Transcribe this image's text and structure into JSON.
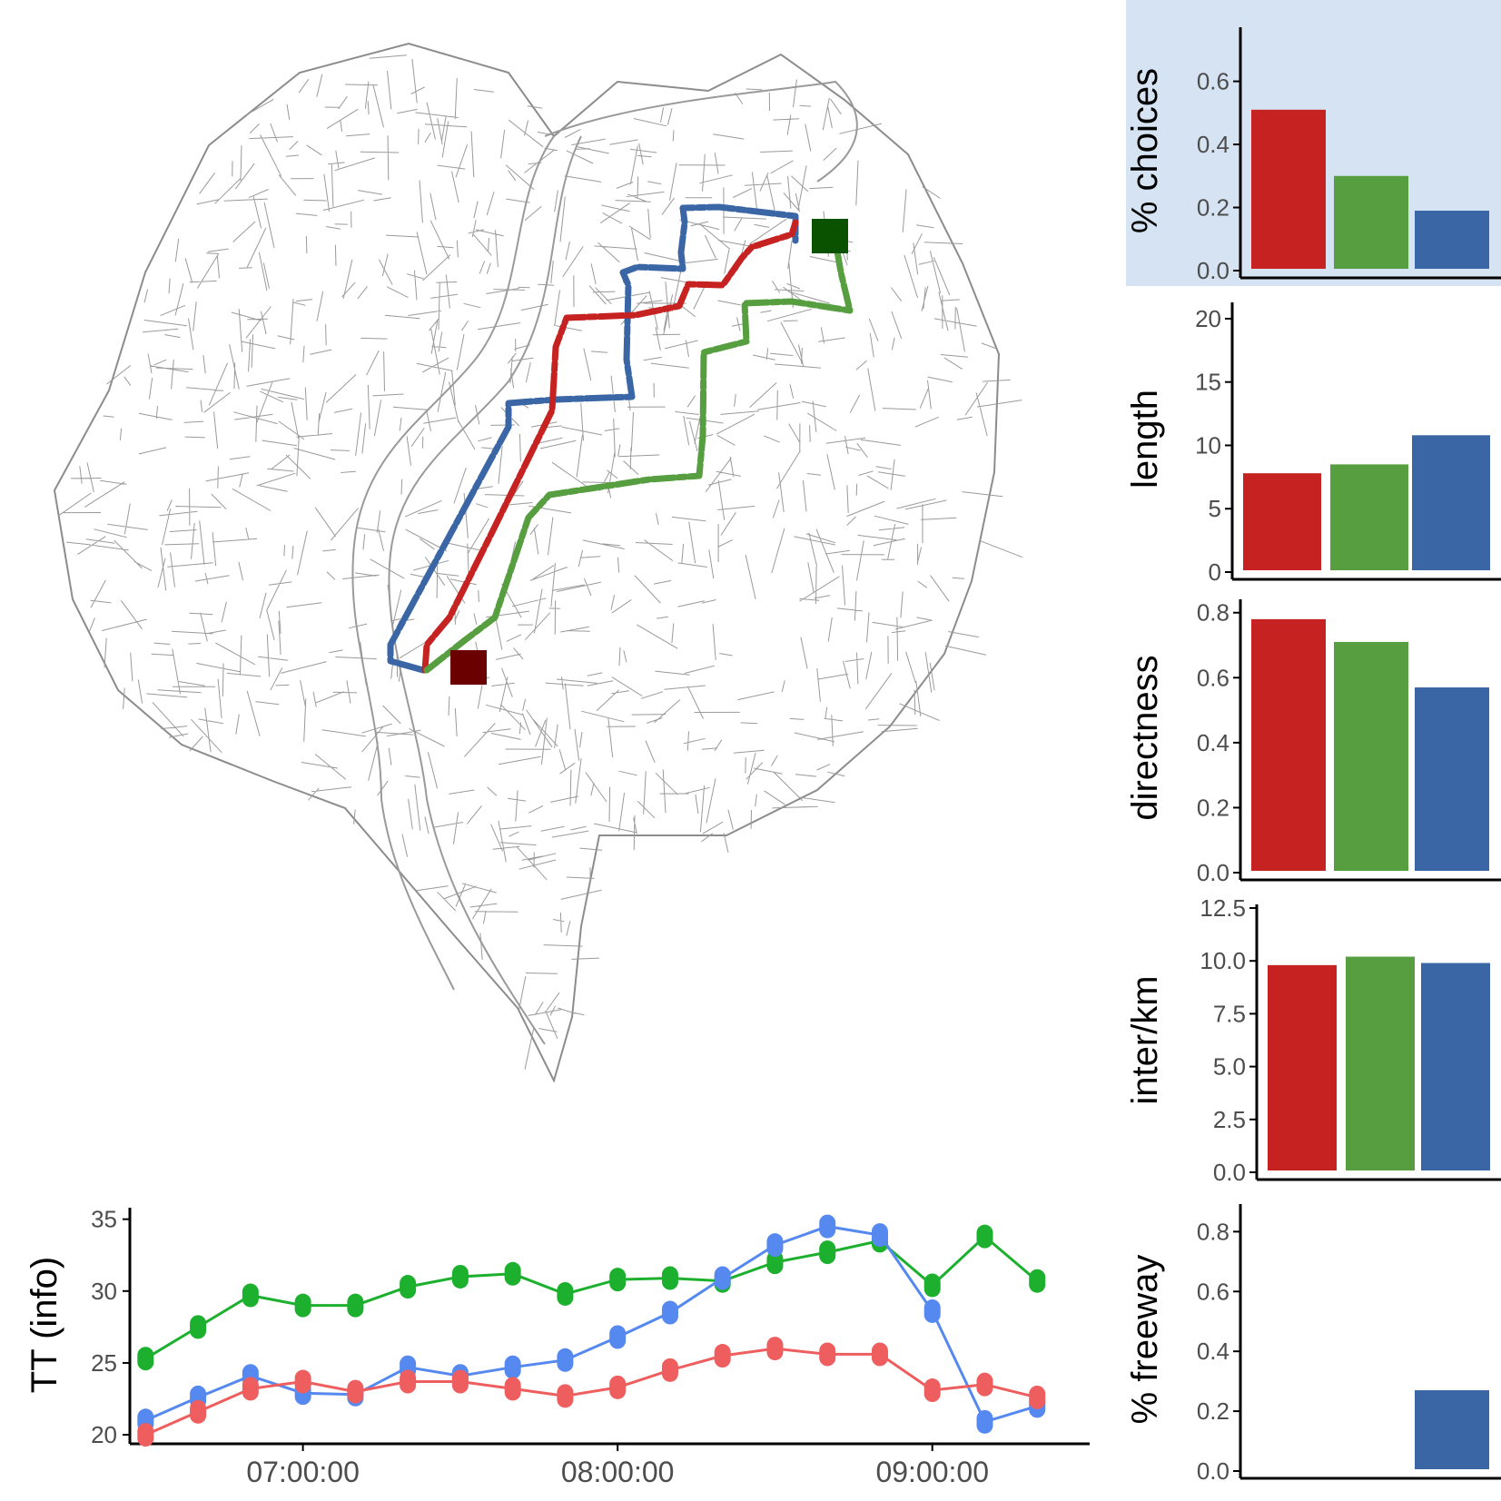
{
  "colors": {
    "red": "#C62222",
    "green": "#569E3F",
    "blue": "#3A66A5",
    "tt_red": "#EE5E5E",
    "tt_green": "#1CB02E",
    "tt_blue": "#5589F0",
    "highlight_panel": "#D6E3F2",
    "origin_marker": "#6B0000",
    "destination_marker": "#0B5200"
  },
  "map": {
    "routes": [
      "red",
      "green",
      "blue"
    ],
    "origin": "origin",
    "destination": "destination"
  },
  "chart_data": [
    {
      "type": "bar",
      "id": "choices",
      "ylabel": "% choices",
      "highlighted": true,
      "categories": [
        "red",
        "green",
        "blue"
      ],
      "values": [
        0.51,
        0.3,
        0.19
      ],
      "ylim": [
        0,
        0.76
      ],
      "yticks": [
        "0.0",
        "0.2",
        "0.4",
        "0.6"
      ]
    },
    {
      "type": "bar",
      "id": "length",
      "ylabel": "length",
      "categories": [
        "red",
        "green",
        "blue"
      ],
      "values": [
        7.8,
        8.5,
        10.8
      ],
      "ylim": [
        0,
        21
      ],
      "yticks": [
        "0",
        "5",
        "10",
        "15",
        "20"
      ]
    },
    {
      "type": "bar",
      "id": "directness",
      "ylabel": "directness",
      "categories": [
        "red",
        "green",
        "blue"
      ],
      "values": [
        0.78,
        0.71,
        0.57
      ],
      "ylim": [
        0,
        0.83
      ],
      "yticks": [
        "0.0",
        "0.2",
        "0.4",
        "0.6",
        "0.8"
      ]
    },
    {
      "type": "bar",
      "id": "interkm",
      "ylabel": "inter/km",
      "categories": [
        "red",
        "green",
        "blue"
      ],
      "values": [
        9.8,
        10.2,
        9.9
      ],
      "ylim": [
        0,
        12.5
      ],
      "yticks": [
        "0.0",
        "2.5",
        "5.0",
        "7.5",
        "10.0",
        "12.5"
      ]
    },
    {
      "type": "bar",
      "id": "freeway",
      "ylabel": "% freeway",
      "categories": [
        "red",
        "green",
        "blue"
      ],
      "values": [
        0,
        0,
        0.27
      ],
      "ylim": [
        0,
        0.88
      ],
      "yticks": [
        "0.0",
        "0.2",
        "0.4",
        "0.6",
        "0.8"
      ]
    },
    {
      "type": "line",
      "id": "tt",
      "ylabel": "TT (info)",
      "xlabel": "",
      "x_minutes": [
        6.5,
        6.6667,
        6.8333,
        7.0,
        7.1667,
        7.3333,
        7.5,
        7.6667,
        7.8333,
        8.0,
        8.1667,
        8.3333,
        8.5,
        8.6667,
        8.8333,
        9.0,
        9.1667,
        9.3333
      ],
      "x_unit": "hours since midnight",
      "xlim": [
        6.45,
        9.5
      ],
      "ylim": [
        19.5,
        35.8
      ],
      "xticks": [
        {
          "value": 7.0,
          "label": "07:00:00"
        },
        {
          "value": 8.0,
          "label": "08:00:00"
        },
        {
          "value": 9.0,
          "label": "09:00:00"
        }
      ],
      "yticks": [
        "20",
        "25",
        "30",
        "35"
      ],
      "series": [
        {
          "name": "green",
          "values": [
            25.3,
            27.5,
            29.7,
            29.0,
            29.0,
            30.3,
            31.0,
            31.2,
            29.8,
            30.8,
            30.9,
            30.7,
            32.0,
            32.7,
            33.5,
            30.4,
            33.8,
            30.7
          ]
        },
        {
          "name": "blue",
          "values": [
            21.0,
            22.6,
            24.1,
            22.9,
            22.8,
            24.7,
            24.1,
            24.7,
            25.2,
            26.8,
            28.5,
            30.9,
            33.2,
            34.5,
            33.9,
            28.6,
            20.9,
            22.0
          ]
        },
        {
          "name": "red",
          "values": [
            20.0,
            21.6,
            23.2,
            23.7,
            23.0,
            23.7,
            23.7,
            23.2,
            22.7,
            23.3,
            24.5,
            25.5,
            26.0,
            25.6,
            25.6,
            23.1,
            23.5,
            22.6
          ]
        }
      ]
    }
  ]
}
